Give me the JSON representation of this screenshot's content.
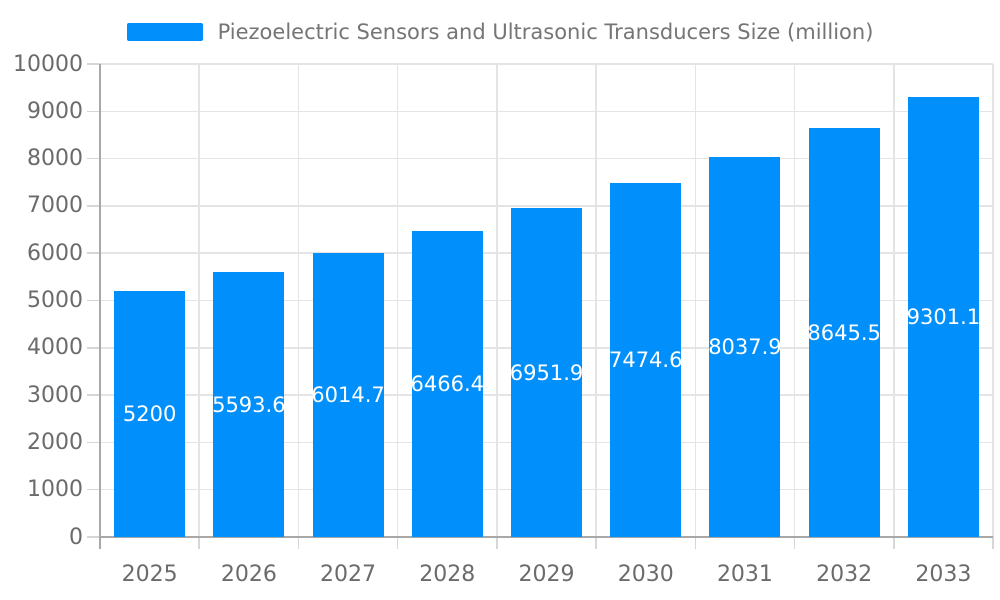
{
  "chart_data": {
    "type": "bar",
    "title": "",
    "xlabel": "",
    "ylabel": "",
    "categories": [
      "2025",
      "2026",
      "2027",
      "2028",
      "2029",
      "2030",
      "2031",
      "2032",
      "2033"
    ],
    "series": [
      {
        "name": "Piezoelectric Sensors and Ultrasonic Transducers Size (million)",
        "values": [
          5200,
          5593.6,
          6014.7,
          6466.4,
          6951.9,
          7474.6,
          8037.9,
          8645.5,
          9301.1
        ]
      }
    ],
    "value_labels": [
      "5200",
      "5593.6",
      "6014.7",
      "6466.4",
      "6951.9",
      "7474.6",
      "8037.9",
      "8645.5",
      "9301.1"
    ],
    "ylim": [
      0,
      10000
    ],
    "ytick_step": 1000,
    "ytick_labels": [
      "0",
      "1000",
      "2000",
      "3000",
      "4000",
      "5000",
      "6000",
      "7000",
      "8000",
      "9000",
      "10000"
    ],
    "grid": "both",
    "legend_position": "top"
  },
  "colors": {
    "bar": "#008FFB",
    "grid": "#e4e4e4",
    "axis": "#a8a8a8",
    "tick": "#d6d6d6",
    "axis_label": "#6b6b6b",
    "legend_text": "#757575",
    "value_label": "#ffffff",
    "background": "#ffffff"
  }
}
